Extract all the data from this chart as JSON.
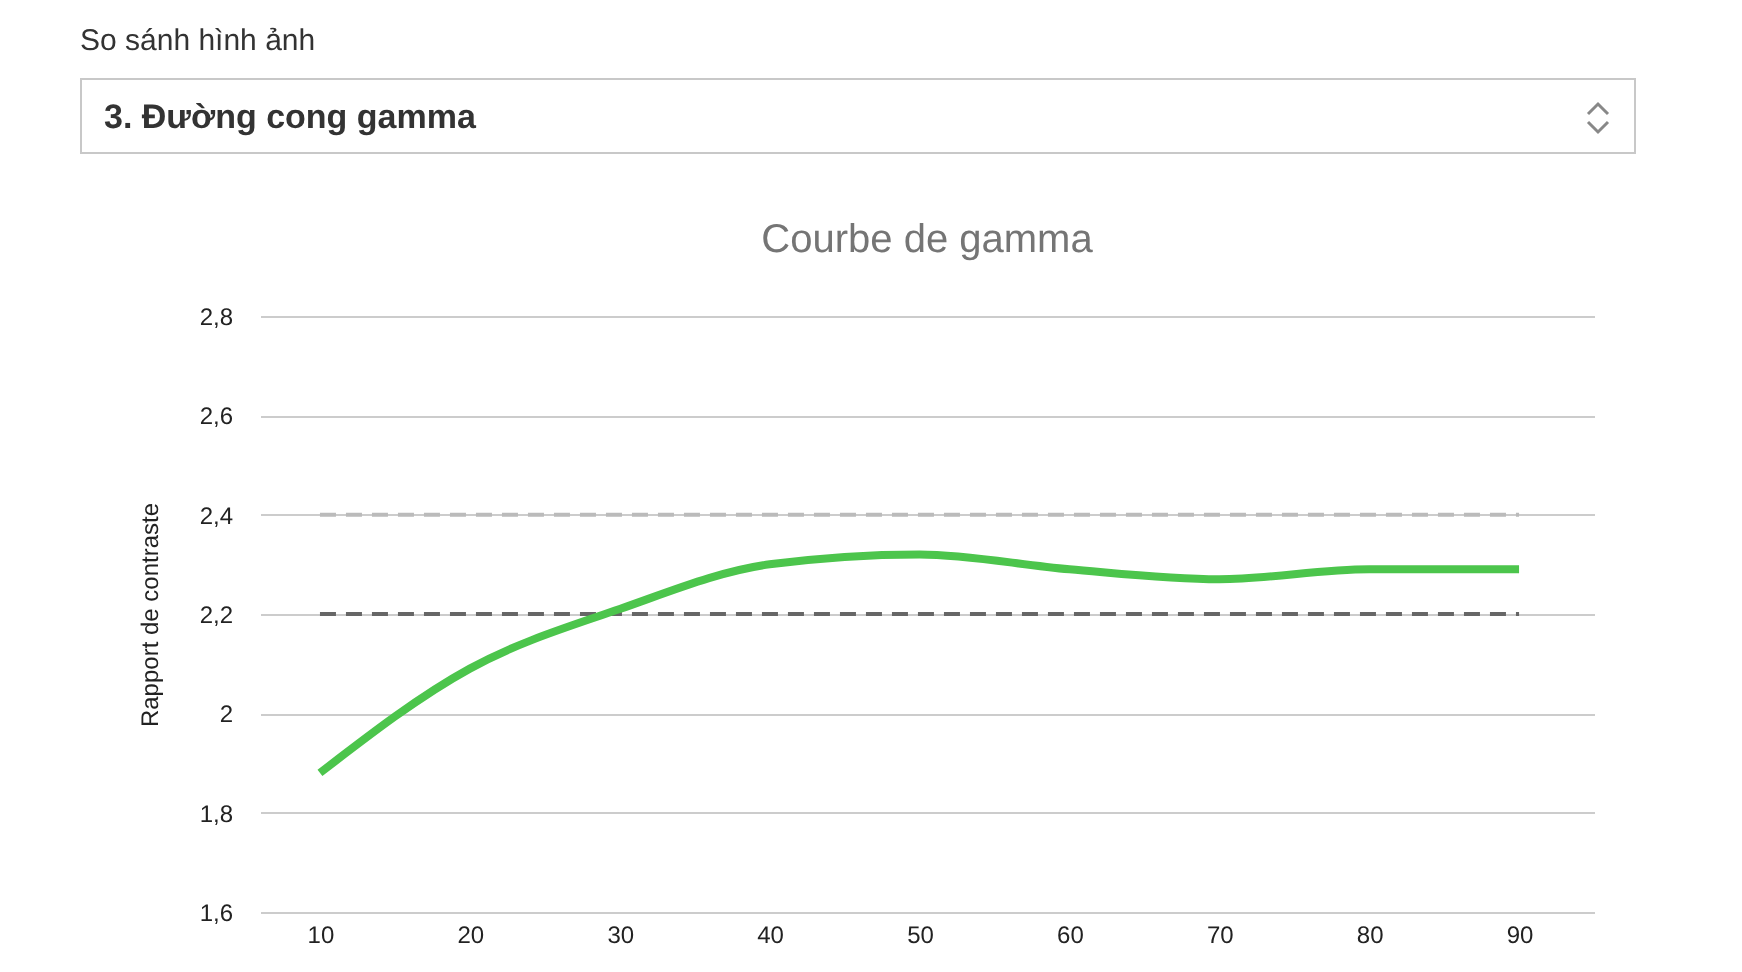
{
  "chart_data": {
    "type": "line",
    "title": "Courbe de gamma",
    "ylabel": "Rapport de contraste",
    "annotations": [
      "So sánh hình ảnh",
      "3. Đường cong gamma"
    ],
    "x": [
      10,
      20,
      30,
      40,
      50,
      60,
      70,
      80,
      90
    ],
    "series": [
      {
        "color": "#4cc54c",
        "values": [
          1.88,
          2.09,
          2.21,
          2.3,
          2.32,
          2.29,
          2.27,
          2.29,
          2.29
        ]
      }
    ],
    "xlim": [
      6,
      95
    ],
    "xticks": [
      10,
      20,
      30,
      40,
      50,
      60,
      70,
      80,
      90
    ],
    "ylim": [
      1.6,
      2.8
    ],
    "yticks": [
      {
        "value": 1.6,
        "label": "1,6"
      },
      {
        "value": 1.8,
        "label": "1,8"
      },
      2,
      {
        "value": 2.2,
        "label": "2,2"
      },
      {
        "value": 2.4,
        "label": "2,4"
      },
      {
        "value": 2.6,
        "label": "2,6"
      },
      {
        "value": 2.8,
        "label": "2,8"
      }
    ],
    "ref_lines": [
      {
        "axis": "y",
        "value": 2.4,
        "color": "#bbbbbb",
        "line_style": "dashed"
      },
      {
        "axis": "y",
        "value": 2.2,
        "color": "#666666",
        "line_style": "dashed"
      }
    ],
    "grid": "y",
    "marker": "none",
    "line_style": "solid"
  }
}
